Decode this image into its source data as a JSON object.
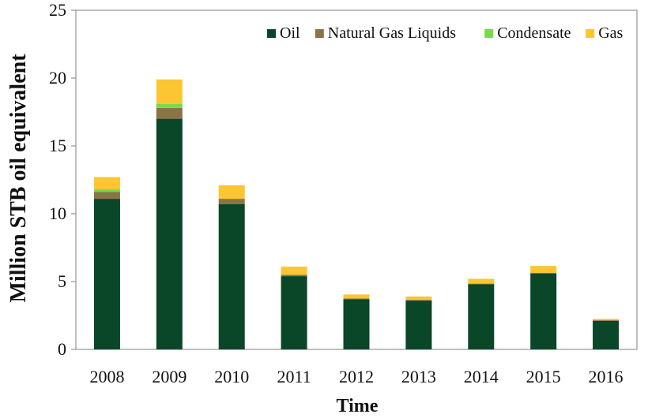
{
  "chart_data": {
    "type": "bar",
    "stacked": true,
    "title": "",
    "xlabel": "Time",
    "ylabel": "Million STB oil equivalent",
    "ylim": [
      0,
      25
    ],
    "yticks": [
      0,
      5,
      10,
      15,
      20,
      25
    ],
    "grid": false,
    "legend_position": "top-right",
    "categories": [
      "2008",
      "2009",
      "2010",
      "2011",
      "2012",
      "2013",
      "2014",
      "2015",
      "2016"
    ],
    "series": [
      {
        "name": "Oil",
        "color": "#0a4628",
        "values": [
          11.1,
          17.0,
          10.7,
          5.4,
          3.7,
          3.6,
          4.8,
          5.6,
          2.1
        ]
      },
      {
        "name": "Natural Gas Liquids",
        "color": "#8b7347",
        "values": [
          0.5,
          0.8,
          0.4,
          0.1,
          0.05,
          0.05,
          0.05,
          0.05,
          0.05
        ]
      },
      {
        "name": "Condensate",
        "color": "#77d94b",
        "values": [
          0.2,
          0.3,
          0.0,
          0.0,
          0.0,
          0.0,
          0.0,
          0.0,
          0.0
        ]
      },
      {
        "name": "Gas",
        "color": "#fcc532",
        "values": [
          0.9,
          1.8,
          1.0,
          0.6,
          0.3,
          0.25,
          0.35,
          0.5,
          0.1
        ]
      }
    ]
  }
}
